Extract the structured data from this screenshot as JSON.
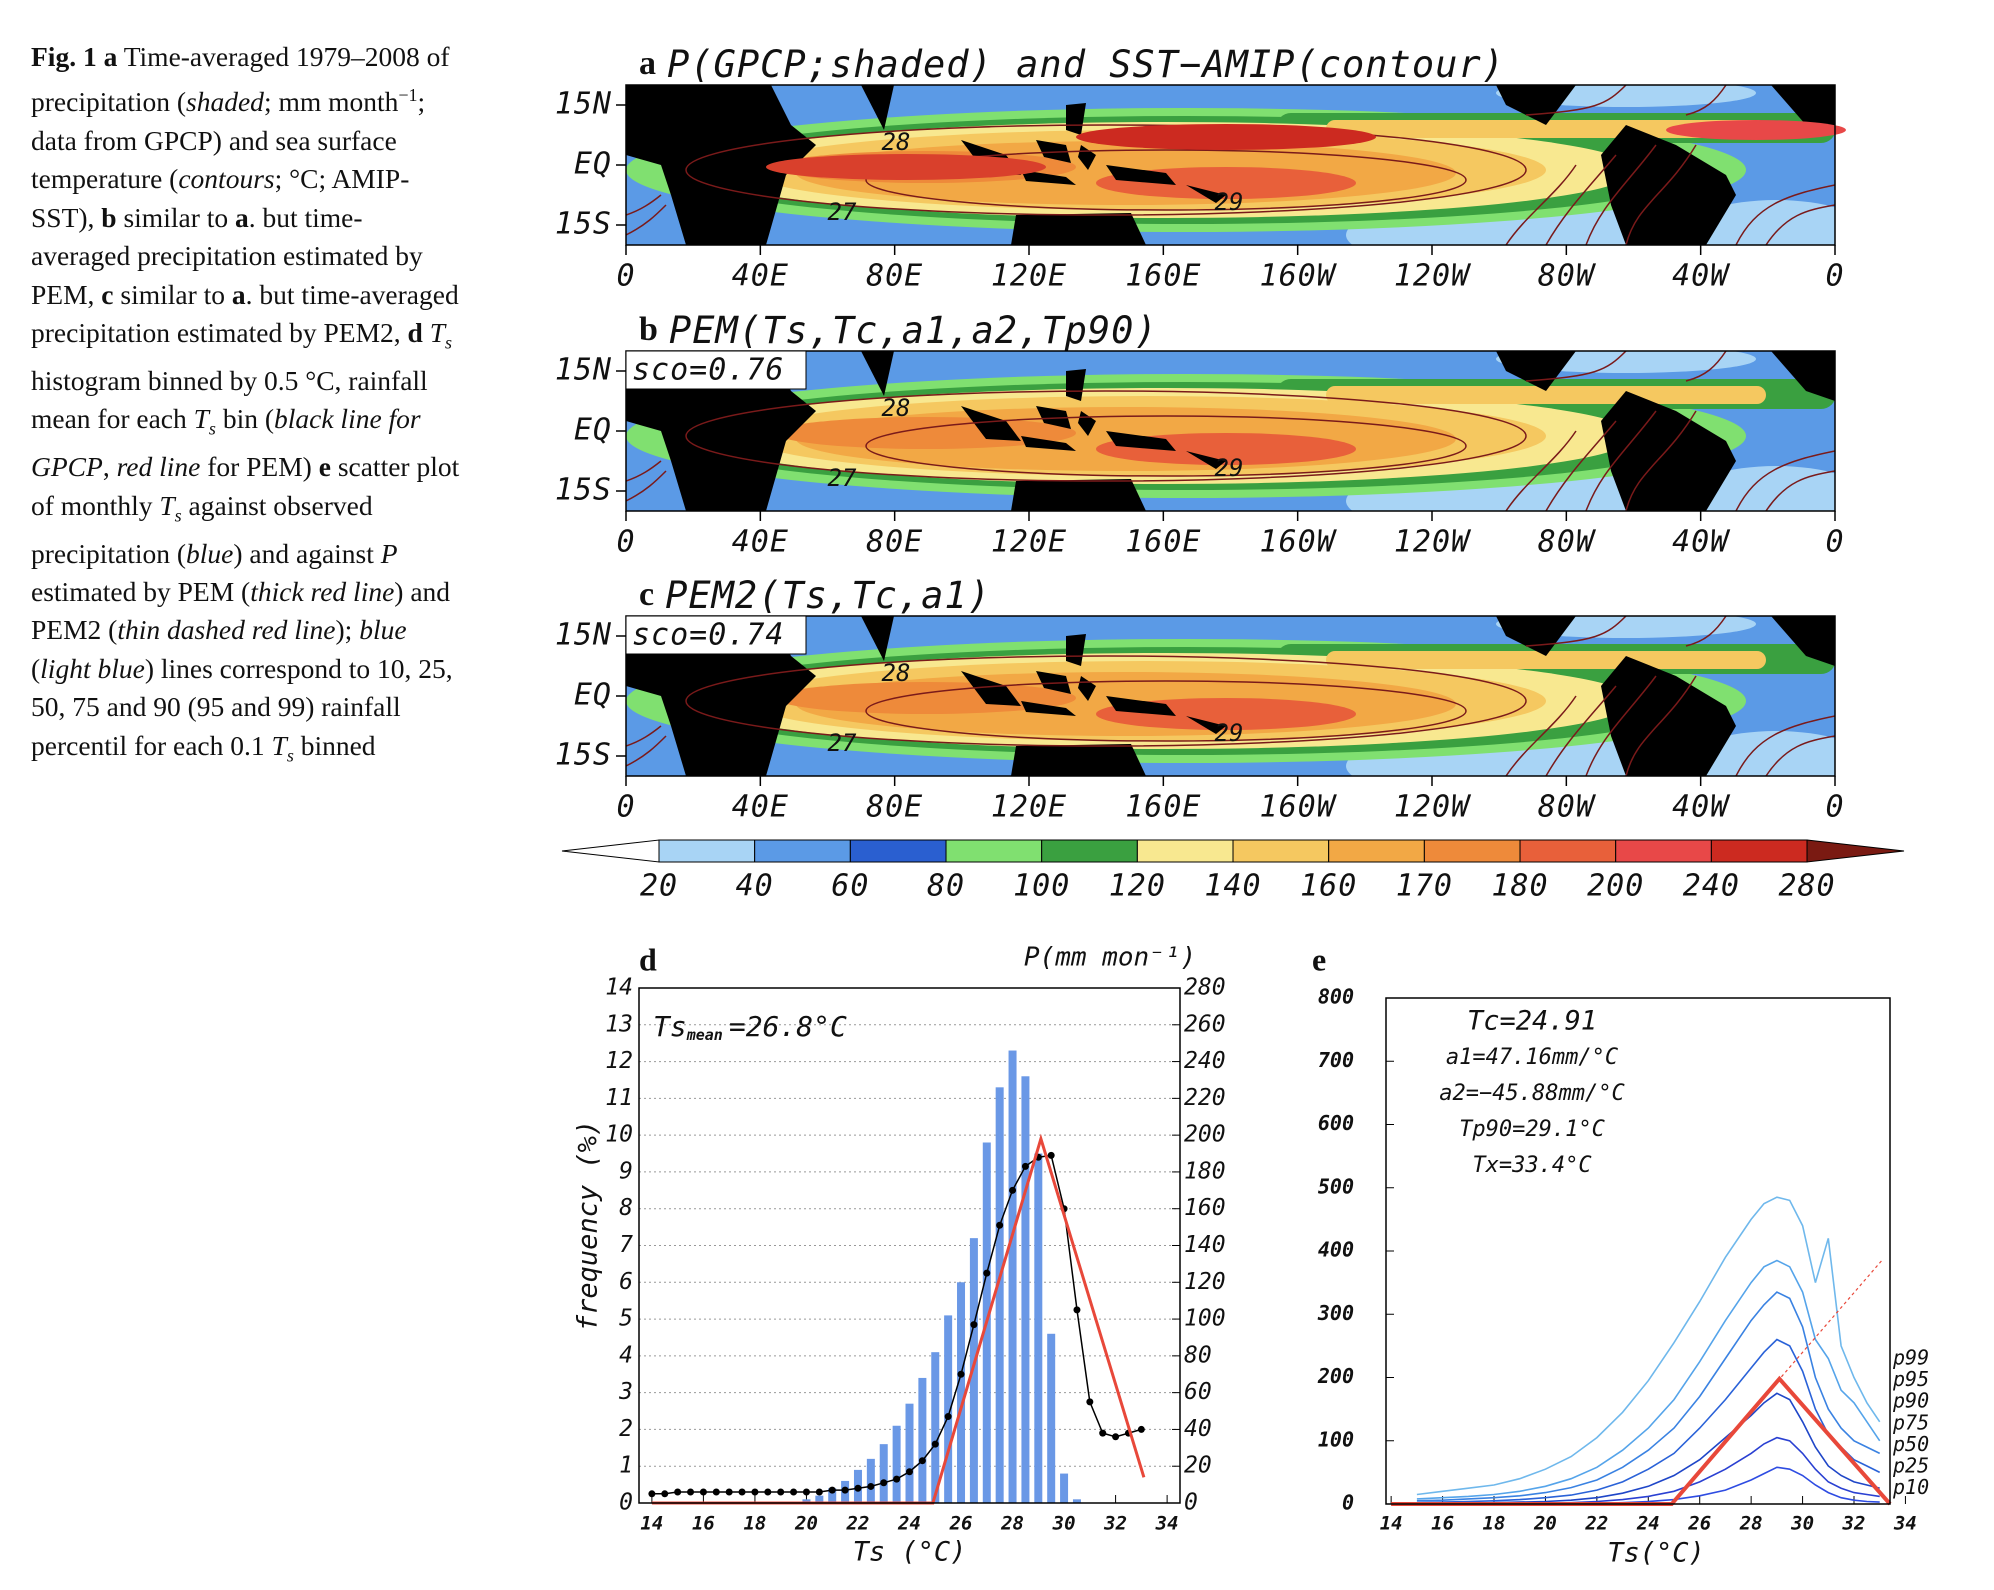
{
  "caption": [
    {
      "t": "Fig. 1 a",
      "b": true
    },
    {
      "t": " Time-averaged 1979–2008 of precipitation ("
    },
    {
      "t": "shaded",
      "i": true
    },
    {
      "t": "; mm month"
    },
    {
      "t": "−1",
      "sup": true
    },
    {
      "t": "; data from GPCP) and sea surface temperature ("
    },
    {
      "t": "contours",
      "i": true
    },
    {
      "t": "; °C; AMIP-SST), "
    },
    {
      "t": "b",
      "b": true
    },
    {
      "t": " similar to "
    },
    {
      "t": "a",
      "b": true
    },
    {
      "t": ". but time-averaged precipitation estimated by PEM, "
    },
    {
      "t": "c",
      "b": true
    },
    {
      "t": " similar to "
    },
    {
      "t": "a",
      "b": true
    },
    {
      "t": ". but time-averaged precipitation estimated by PEM2, "
    },
    {
      "t": "d",
      "b": true
    },
    {
      "t": " T",
      "i": true
    },
    {
      "t": "s",
      "i": true,
      "sub": true
    },
    {
      "t": " histogram binned by 0.5 °C, rainfall mean for each "
    },
    {
      "t": "T",
      "i": true
    },
    {
      "t": "s",
      "i": true,
      "sub": true
    },
    {
      "t": " bin ("
    },
    {
      "t": "black line for GPCP",
      "i": true
    },
    {
      "t": ", "
    },
    {
      "t": "red line",
      "i": true
    },
    {
      "t": " for PEM) "
    },
    {
      "t": "e",
      "b": true
    },
    {
      "t": " scatter plot of monthly "
    },
    {
      "t": "T",
      "i": true
    },
    {
      "t": "s",
      "i": true,
      "sub": true
    },
    {
      "t": " against observed precipitation ("
    },
    {
      "t": "blue",
      "i": true
    },
    {
      "t": ") and against "
    },
    {
      "t": "P",
      "i": true
    },
    {
      "t": " estimated by PEM ("
    },
    {
      "t": "thick red line",
      "i": true
    },
    {
      "t": ") and PEM2 ("
    },
    {
      "t": "thin dashed red line",
      "i": true
    },
    {
      "t": "); "
    },
    {
      "t": "blue",
      "i": true
    },
    {
      "t": " ("
    },
    {
      "t": "light blue",
      "i": true
    },
    {
      "t": ") lines correspond to 10, 25, 50, 75 and 90 (95 and 99) rainfall percentil for each 0.1 "
    },
    {
      "t": "T",
      "i": true
    },
    {
      "t": "s",
      "i": true,
      "sub": true
    },
    {
      "t": " binned"
    }
  ],
  "maps": [
    {
      "panel": "a",
      "title": "P(GPCP;shaded) and SST−AMIP(contour)",
      "lat_labels": [
        "15N",
        "EQ",
        "15S"
      ],
      "lon_labels": [
        "0",
        "40E",
        "80E",
        "120E",
        "160E",
        "160W",
        "120W",
        "80W",
        "40W",
        "0"
      ],
      "contour_labels": [
        "28",
        "27",
        "29"
      ]
    },
    {
      "panel": "b",
      "title": "PEM(Ts,Tc,a1,a2,Tp90)",
      "score": "sco=0.76",
      "lat_labels": [
        "15N",
        "EQ",
        "15S"
      ],
      "lon_labels": [
        "0",
        "40E",
        "80E",
        "120E",
        "160E",
        "160W",
        "120W",
        "80W",
        "40W",
        "0"
      ],
      "contour_labels": [
        "28",
        "27",
        "29"
      ]
    },
    {
      "panel": "c",
      "title": "PEM2(Ts,Tc,a1)",
      "score": "sco=0.74",
      "lat_labels": [
        "15N",
        "EQ",
        "15S"
      ],
      "lon_labels": [
        "0",
        "40E",
        "80E",
        "120E",
        "160E",
        "160W",
        "120W",
        "80W",
        "40W",
        "0"
      ],
      "contour_labels": [
        "28",
        "27",
        "29"
      ]
    }
  ],
  "colorbar": {
    "levels": [
      20,
      40,
      60,
      80,
      100,
      120,
      140,
      160,
      170,
      180,
      200,
      240,
      280
    ],
    "colors": [
      "#a8d4f5",
      "#5b9ae6",
      "#2a5fd0",
      "#80e070",
      "#3aa040",
      "#f8e890",
      "#f5c860",
      "#f2a845",
      "#ee8a3a",
      "#e8603a",
      "#e84848",
      "#cc2a20"
    ],
    "under_color": "#ffffff",
    "over_color": "#7a1a12"
  },
  "chart_data": [
    {
      "type": "combo",
      "panel": "d",
      "annotation": {
        "main": "Ts",
        "sub": "mean",
        "rest": "=26.8°C"
      },
      "xlabel": "Ts (°C)",
      "ylabel": "frequency (%)",
      "y2label": "P(mm mon⁻¹)",
      "xlim": [
        13.5,
        34.5
      ],
      "xticks": [
        14,
        16,
        18,
        20,
        22,
        24,
        26,
        28,
        30,
        32,
        34
      ],
      "ylim": [
        0,
        14
      ],
      "yticks": [
        0,
        1,
        2,
        3,
        4,
        5,
        6,
        7,
        8,
        9,
        10,
        11,
        12,
        13,
        14
      ],
      "y2lim": [
        0,
        280
      ],
      "y2ticks": [
        0,
        20,
        40,
        60,
        80,
        100,
        120,
        140,
        160,
        180,
        200,
        220,
        240,
        260,
        280
      ],
      "grid": true,
      "series": [
        {
          "kind": "bar",
          "color": "#6a98e6",
          "x": [
            20,
            20.5,
            21,
            21.5,
            22,
            22.5,
            23,
            23.5,
            24,
            24.5,
            25,
            25.5,
            26,
            26.5,
            27,
            27.5,
            28,
            28.5,
            29,
            29.5,
            30,
            30.5
          ],
          "values": [
            0.1,
            0.2,
            0.4,
            0.6,
            0.9,
            1.2,
            1.6,
            2.1,
            2.7,
            3.4,
            4.1,
            5.1,
            6.0,
            7.2,
            9.8,
            11.3,
            12.3,
            11.6,
            9.5,
            4.6,
            0.8,
            0.1
          ]
        },
        {
          "kind": "line",
          "axis": "y2",
          "color": "#000000",
          "markers": true,
          "x": [
            14,
            14.5,
            15,
            15.5,
            16,
            16.5,
            17,
            17.5,
            18,
            18.5,
            19,
            19.5,
            20,
            20.5,
            21,
            21.5,
            22,
            22.5,
            23,
            23.5,
            24,
            24.5,
            25,
            25.5,
            26,
            26.5,
            27,
            27.5,
            28,
            28.5,
            29,
            29.5,
            30,
            30.5,
            31,
            31.5,
            32,
            32.5,
            33
          ],
          "values": [
            5,
            5,
            6,
            6,
            6,
            6,
            6,
            6,
            6,
            6,
            6,
            6,
            6,
            6,
            7,
            7,
            8,
            9,
            11,
            13,
            17,
            23,
            32,
            47,
            70,
            97,
            125,
            151,
            170,
            183,
            188,
            189,
            160,
            105,
            55,
            38,
            36,
            38,
            40
          ]
        },
        {
          "kind": "line",
          "axis": "y2",
          "color": "#e8483a",
          "line_width": 3,
          "x": [
            14,
            24.91,
            29.1,
            33.1
          ],
          "values": [
            0,
            0,
            198,
            14
          ]
        }
      ]
    },
    {
      "type": "line",
      "panel": "e",
      "annotations": [
        "Tc=24.91",
        "a1=47.16mm/°C",
        "a2=−45.88mm/°C",
        "Tp90=29.1°C",
        "Tx=33.4°C"
      ],
      "xlabel": "Ts(°C)",
      "xlim": [
        13.8,
        33.4
      ],
      "xticks": [
        14,
        16,
        18,
        20,
        22,
        24,
        26,
        28,
        30,
        32,
        34
      ],
      "ylim": [
        0,
        800
      ],
      "yticks": [
        0,
        100,
        200,
        300,
        400,
        500,
        600,
        700,
        800
      ],
      "series": [
        {
          "name": "p99",
          "color": "#6fb8ec",
          "x": [
            15,
            16,
            17,
            18,
            19,
            20,
            21,
            22,
            23,
            24,
            25,
            26,
            27,
            28,
            28.5,
            29,
            29.5,
            30,
            30.5,
            31,
            31.5,
            32,
            32.5,
            33
          ],
          "values": [
            15,
            20,
            25,
            30,
            40,
            55,
            75,
            105,
            145,
            195,
            255,
            320,
            390,
            450,
            475,
            485,
            480,
            440,
            350,
            420,
            250,
            200,
            160,
            130
          ]
        },
        {
          "name": "p95",
          "color": "#55a4ea",
          "x": [
            15,
            16,
            17,
            18,
            19,
            20,
            21,
            22,
            23,
            24,
            25,
            26,
            27,
            28,
            28.5,
            29,
            29.5,
            30,
            30.5,
            31,
            31.5,
            32,
            32.5,
            33
          ],
          "values": [
            8,
            10,
            12,
            15,
            20,
            28,
            40,
            58,
            85,
            120,
            165,
            225,
            290,
            350,
            375,
            385,
            375,
            335,
            260,
            230,
            180,
            160,
            130,
            100
          ]
        },
        {
          "name": "p90",
          "color": "#3a82e2",
          "x": [
            15,
            16,
            17,
            18,
            19,
            20,
            21,
            22,
            23,
            24,
            25,
            26,
            27,
            28,
            28.5,
            29,
            29.5,
            30,
            30.5,
            31,
            31.5,
            32,
            32.5,
            33
          ],
          "values": [
            5,
            6,
            8,
            10,
            13,
            18,
            26,
            38,
            58,
            85,
            120,
            170,
            230,
            290,
            315,
            335,
            325,
            280,
            200,
            150,
            120,
            100,
            90,
            80
          ]
        },
        {
          "name": "p75",
          "color": "#2a62d8",
          "x": [
            15,
            16,
            17,
            18,
            19,
            20,
            21,
            22,
            23,
            24,
            25,
            26,
            27,
            28,
            28.5,
            29,
            29.5,
            30,
            30.5,
            31,
            31.5,
            32,
            32.5,
            33
          ],
          "values": [
            2,
            3,
            4,
            5,
            7,
            10,
            14,
            22,
            35,
            55,
            80,
            120,
            165,
            215,
            240,
            260,
            250,
            210,
            150,
            110,
            90,
            70,
            60,
            50
          ]
        },
        {
          "name": "p50",
          "color": "#1f46c8",
          "x": [
            15,
            16,
            17,
            18,
            19,
            20,
            21,
            22,
            23,
            24,
            25,
            26,
            27,
            28,
            28.5,
            29,
            29.5,
            30,
            30.5,
            31,
            31.5,
            32,
            32.5,
            33
          ],
          "values": [
            0,
            1,
            1,
            2,
            3,
            4,
            6,
            10,
            17,
            28,
            45,
            70,
            105,
            140,
            160,
            175,
            165,
            130,
            90,
            60,
            45,
            35,
            30,
            25
          ]
        },
        {
          "name": "p25",
          "color": "#2a40d2",
          "x": [
            15,
            16,
            17,
            18,
            19,
            20,
            21,
            22,
            23,
            24,
            25,
            26,
            27,
            28,
            28.5,
            29,
            29.5,
            30,
            30.5,
            31,
            31.5,
            32,
            32.5,
            33
          ],
          "values": [
            0,
            0,
            0,
            0,
            1,
            1,
            2,
            4,
            7,
            12,
            20,
            35,
            55,
            80,
            95,
            105,
            100,
            80,
            55,
            35,
            25,
            18,
            15,
            12
          ]
        },
        {
          "name": "p10",
          "color": "#2e4ce2",
          "x": [
            15,
            16,
            17,
            18,
            19,
            20,
            21,
            22,
            23,
            24,
            25,
            26,
            27,
            28,
            28.5,
            29,
            29.5,
            30,
            30.5,
            31,
            31.5,
            32,
            32.5,
            33
          ],
          "values": [
            0,
            0,
            0,
            0,
            0,
            0,
            0,
            1,
            2,
            4,
            7,
            13,
            22,
            38,
            48,
            58,
            55,
            45,
            30,
            18,
            10,
            6,
            4,
            3
          ]
        },
        {
          "color": "#e8483a",
          "line_width": 4,
          "x": [
            14,
            24.91,
            29.1,
            33.4
          ],
          "values": [
            0,
            0,
            198,
            0
          ]
        },
        {
          "color": "#e8483a",
          "line_width": 1.2,
          "dashed": true,
          "x": [
            24.91,
            33.1
          ],
          "values": [
            0,
            386
          ]
        }
      ]
    }
  ]
}
